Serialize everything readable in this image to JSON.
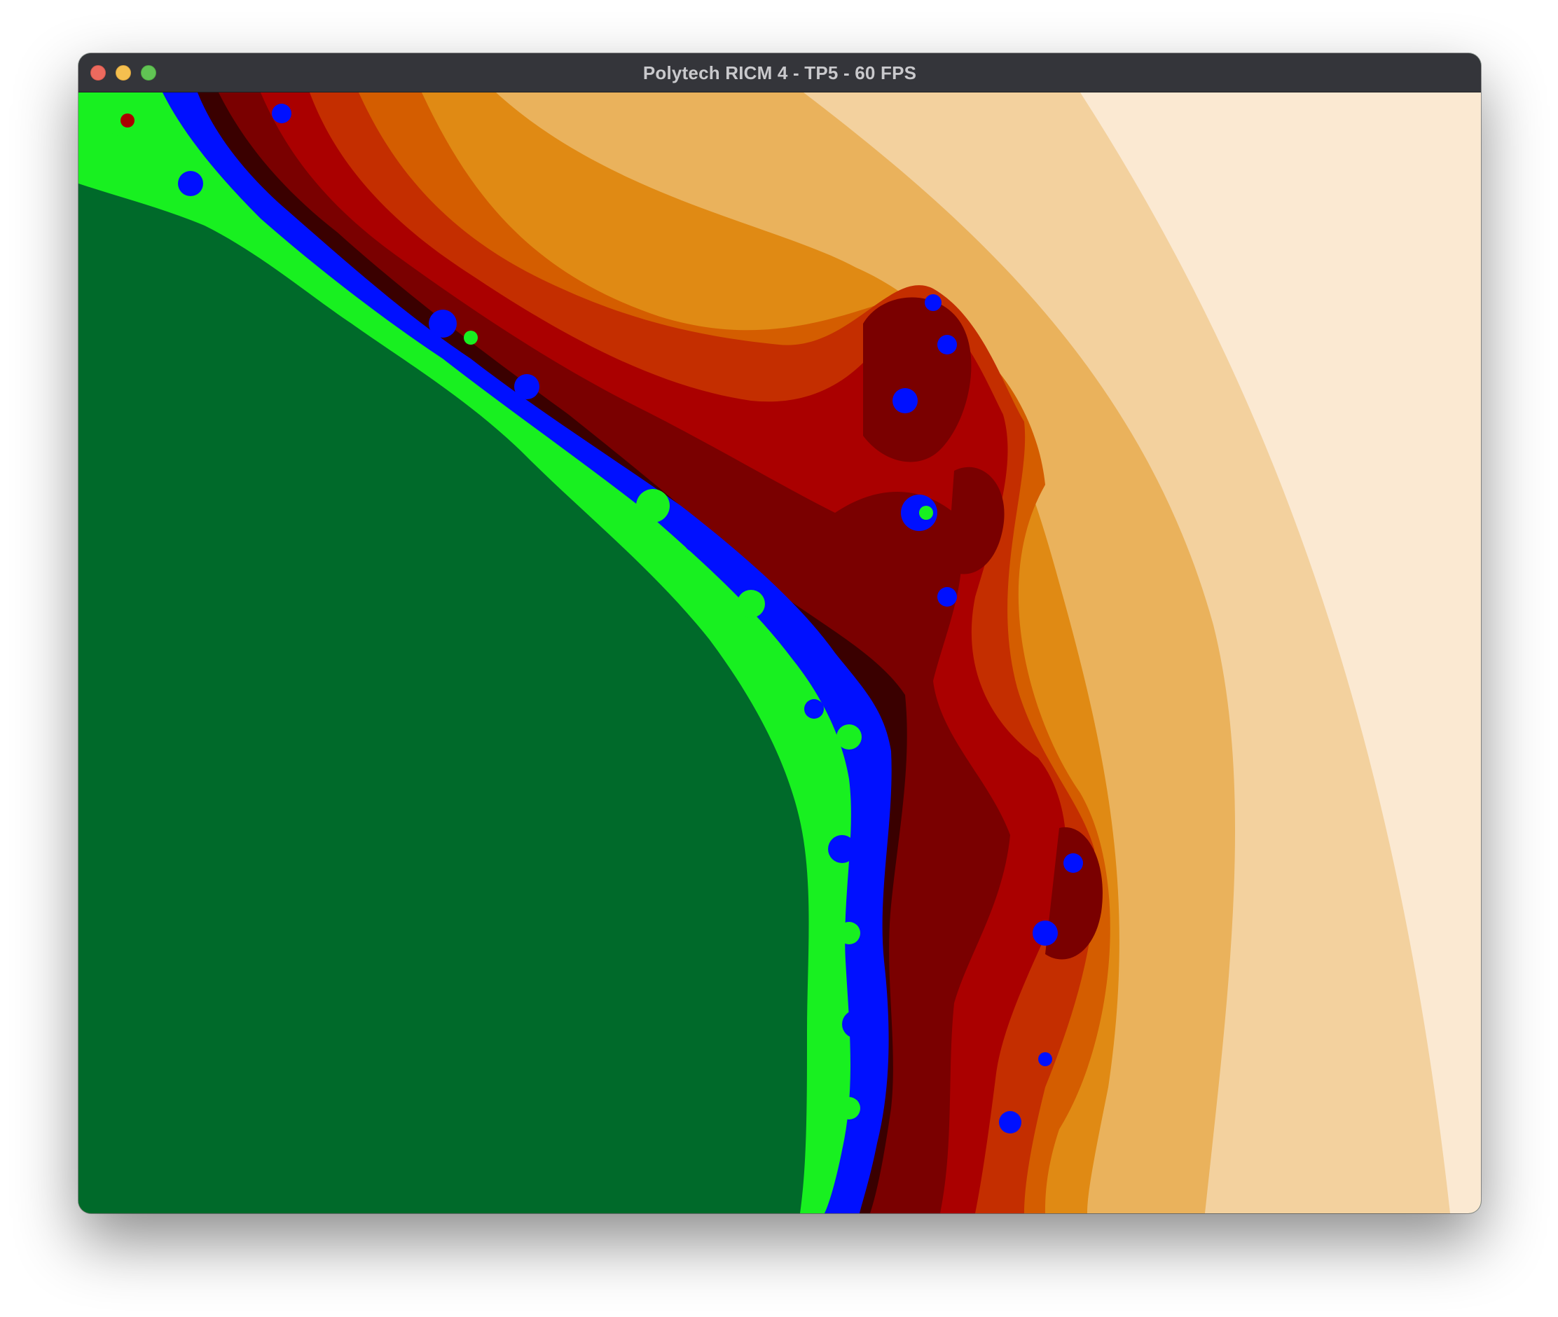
{
  "window": {
    "title": "Polytech RICM 4 - TP5 - 60 FPS",
    "controls": [
      "close-button",
      "minimize-button",
      "zoom-button"
    ]
  },
  "canvas": {
    "content": "fractal-render",
    "colors": {
      "interior": "#006a2a",
      "band_outer": "#fbe9d2",
      "band_2": "#f3d19e",
      "band_3": "#eab25c",
      "band_4": "#e08a14",
      "band_5": "#d45d00",
      "band_6": "#c42e00",
      "band_7": "#aa0000",
      "band_8": "#7a0000",
      "band_9": "#3a0000",
      "edge_blue": "#0010ff",
      "edge_green": "#18f020"
    }
  }
}
